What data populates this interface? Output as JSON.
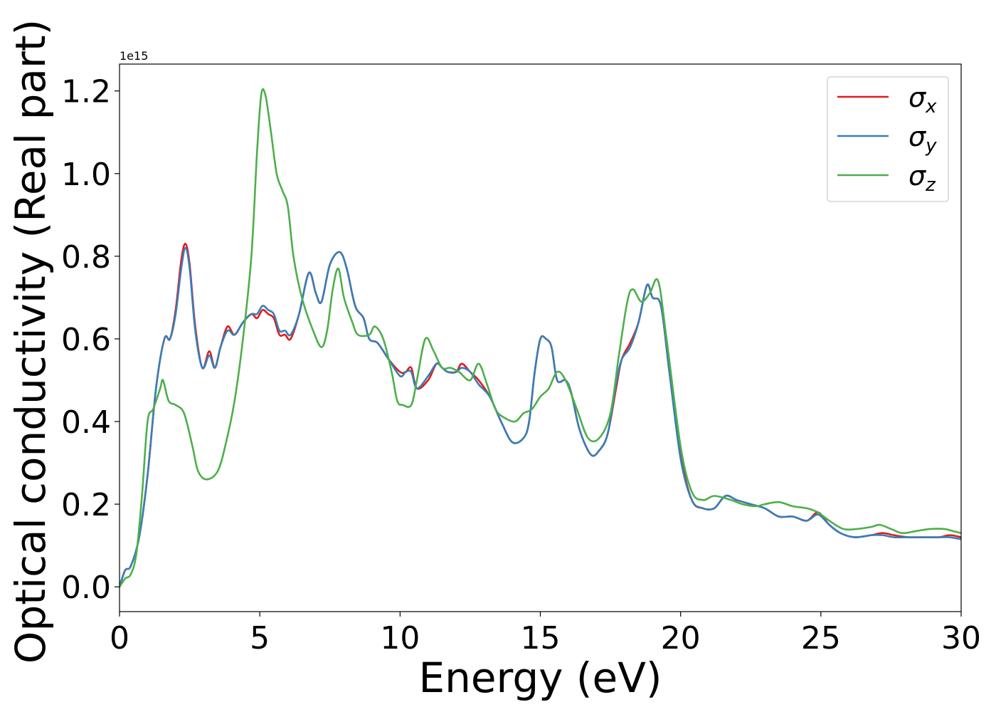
{
  "chart_data": {
    "type": "line",
    "xlabel": "Energy (eV)",
    "ylabel": "Optical conductivity (Real part)",
    "offset_label": "1e15",
    "xlim": [
      0,
      30
    ],
    "ylim": [
      -0.06,
      1.265
    ],
    "xticks": [
      0,
      5,
      10,
      15,
      20,
      25,
      30
    ],
    "xtick_labels": [
      "0",
      "5",
      "10",
      "15",
      "20",
      "25",
      "30"
    ],
    "yticks": [
      0.0,
      0.2,
      0.4,
      0.6,
      0.8,
      1.0,
      1.2
    ],
    "ytick_labels": [
      "0.0",
      "0.2",
      "0.4",
      "0.6",
      "0.8",
      "1.0",
      "1.2"
    ],
    "grid": false,
    "legend": {
      "position": "top-right",
      "entries": [
        {
          "symbol": "σ",
          "sub": "x",
          "color": "#e41a1c"
        },
        {
          "symbol": "σ",
          "sub": "y",
          "color": "#377eb8"
        },
        {
          "symbol": "σ",
          "sub": "z",
          "color": "#4daf4a"
        }
      ]
    },
    "series": [
      {
        "color": "#e41a1c",
        "points": [
          [
            0,
            0.0
          ],
          [
            0.2,
            0.04
          ],
          [
            0.4,
            0.05
          ],
          [
            0.7,
            0.12
          ],
          [
            1.0,
            0.27
          ],
          [
            1.3,
            0.48
          ],
          [
            1.6,
            0.6
          ],
          [
            1.8,
            0.6
          ],
          [
            2.0,
            0.67
          ],
          [
            2.2,
            0.79
          ],
          [
            2.35,
            0.83
          ],
          [
            2.5,
            0.78
          ],
          [
            2.7,
            0.63
          ],
          [
            2.95,
            0.53
          ],
          [
            3.2,
            0.57
          ],
          [
            3.4,
            0.53
          ],
          [
            3.6,
            0.58
          ],
          [
            3.85,
            0.63
          ],
          [
            4.1,
            0.61
          ],
          [
            4.4,
            0.64
          ],
          [
            4.7,
            0.66
          ],
          [
            4.9,
            0.65
          ],
          [
            5.1,
            0.67
          ],
          [
            5.3,
            0.66
          ],
          [
            5.5,
            0.65
          ],
          [
            5.7,
            0.61
          ],
          [
            5.9,
            0.61
          ],
          [
            6.1,
            0.6
          ],
          [
            6.4,
            0.66
          ],
          [
            6.75,
            0.76
          ],
          [
            7.0,
            0.71
          ],
          [
            7.2,
            0.69
          ],
          [
            7.5,
            0.78
          ],
          [
            7.85,
            0.81
          ],
          [
            8.1,
            0.77
          ],
          [
            8.4,
            0.68
          ],
          [
            8.7,
            0.65
          ],
          [
            8.9,
            0.6
          ],
          [
            9.2,
            0.59
          ],
          [
            9.6,
            0.55
          ],
          [
            10.0,
            0.52
          ],
          [
            10.2,
            0.52
          ],
          [
            10.4,
            0.53
          ],
          [
            10.6,
            0.48
          ],
          [
            11.0,
            0.5
          ],
          [
            11.3,
            0.54
          ],
          [
            11.5,
            0.53
          ],
          [
            11.7,
            0.52
          ],
          [
            12.0,
            0.52
          ],
          [
            12.2,
            0.54
          ],
          [
            12.5,
            0.52
          ],
          [
            12.8,
            0.5
          ],
          [
            13.2,
            0.46
          ],
          [
            13.6,
            0.4
          ],
          [
            14.0,
            0.35
          ],
          [
            14.4,
            0.36
          ],
          [
            14.6,
            0.4
          ],
          [
            14.8,
            0.52
          ],
          [
            15.0,
            0.6
          ],
          [
            15.2,
            0.6
          ],
          [
            15.4,
            0.58
          ],
          [
            15.6,
            0.5
          ],
          [
            15.9,
            0.5
          ],
          [
            16.1,
            0.47
          ],
          [
            16.4,
            0.38
          ],
          [
            16.8,
            0.32
          ],
          [
            17.1,
            0.33
          ],
          [
            17.4,
            0.37
          ],
          [
            17.7,
            0.48
          ],
          [
            17.9,
            0.55
          ],
          [
            18.2,
            0.59
          ],
          [
            18.5,
            0.64
          ],
          [
            18.8,
            0.73
          ],
          [
            19.0,
            0.7
          ],
          [
            19.3,
            0.68
          ],
          [
            19.6,
            0.52
          ],
          [
            20.0,
            0.32
          ],
          [
            20.4,
            0.21
          ],
          [
            20.8,
            0.19
          ],
          [
            21.2,
            0.19
          ],
          [
            21.6,
            0.22
          ],
          [
            22.0,
            0.21
          ],
          [
            22.5,
            0.2
          ],
          [
            23.0,
            0.19
          ],
          [
            23.5,
            0.17
          ],
          [
            24.0,
            0.17
          ],
          [
            24.5,
            0.16
          ],
          [
            24.9,
            0.18
          ],
          [
            25.3,
            0.15
          ],
          [
            25.7,
            0.13
          ],
          [
            26.2,
            0.12
          ],
          [
            26.8,
            0.125
          ],
          [
            27.2,
            0.13
          ],
          [
            27.6,
            0.125
          ],
          [
            28.1,
            0.12
          ],
          [
            28.6,
            0.12
          ],
          [
            29.2,
            0.12
          ],
          [
            29.6,
            0.125
          ],
          [
            30.0,
            0.12
          ]
        ]
      },
      {
        "color": "#377eb8",
        "points": [
          [
            0,
            0.0
          ],
          [
            0.2,
            0.04
          ],
          [
            0.4,
            0.05
          ],
          [
            0.7,
            0.12
          ],
          [
            1.0,
            0.27
          ],
          [
            1.3,
            0.48
          ],
          [
            1.6,
            0.6
          ],
          [
            1.8,
            0.6
          ],
          [
            2.0,
            0.66
          ],
          [
            2.2,
            0.77
          ],
          [
            2.35,
            0.82
          ],
          [
            2.5,
            0.77
          ],
          [
            2.7,
            0.62
          ],
          [
            2.95,
            0.53
          ],
          [
            3.2,
            0.56
          ],
          [
            3.4,
            0.53
          ],
          [
            3.6,
            0.58
          ],
          [
            3.85,
            0.62
          ],
          [
            4.1,
            0.61
          ],
          [
            4.4,
            0.64
          ],
          [
            4.7,
            0.66
          ],
          [
            4.9,
            0.66
          ],
          [
            5.1,
            0.68
          ],
          [
            5.3,
            0.67
          ],
          [
            5.5,
            0.66
          ],
          [
            5.7,
            0.62
          ],
          [
            5.9,
            0.62
          ],
          [
            6.1,
            0.61
          ],
          [
            6.4,
            0.66
          ],
          [
            6.75,
            0.76
          ],
          [
            7.0,
            0.71
          ],
          [
            7.2,
            0.69
          ],
          [
            7.5,
            0.78
          ],
          [
            7.85,
            0.81
          ],
          [
            8.1,
            0.77
          ],
          [
            8.4,
            0.68
          ],
          [
            8.7,
            0.65
          ],
          [
            8.9,
            0.6
          ],
          [
            9.2,
            0.59
          ],
          [
            9.6,
            0.55
          ],
          [
            10.0,
            0.51
          ],
          [
            10.2,
            0.52
          ],
          [
            10.4,
            0.52
          ],
          [
            10.6,
            0.48
          ],
          [
            11.0,
            0.51
          ],
          [
            11.3,
            0.54
          ],
          [
            11.5,
            0.53
          ],
          [
            11.7,
            0.52
          ],
          [
            12.0,
            0.52
          ],
          [
            12.2,
            0.53
          ],
          [
            12.5,
            0.52
          ],
          [
            12.8,
            0.49
          ],
          [
            13.2,
            0.46
          ],
          [
            13.6,
            0.4
          ],
          [
            14.0,
            0.35
          ],
          [
            14.4,
            0.36
          ],
          [
            14.6,
            0.4
          ],
          [
            14.8,
            0.52
          ],
          [
            15.0,
            0.6
          ],
          [
            15.2,
            0.6
          ],
          [
            15.4,
            0.58
          ],
          [
            15.6,
            0.5
          ],
          [
            15.9,
            0.5
          ],
          [
            16.1,
            0.47
          ],
          [
            16.4,
            0.38
          ],
          [
            16.8,
            0.32
          ],
          [
            17.1,
            0.33
          ],
          [
            17.4,
            0.37
          ],
          [
            17.7,
            0.49
          ],
          [
            17.9,
            0.55
          ],
          [
            18.2,
            0.58
          ],
          [
            18.5,
            0.64
          ],
          [
            18.8,
            0.73
          ],
          [
            19.0,
            0.7
          ],
          [
            19.3,
            0.68
          ],
          [
            19.6,
            0.52
          ],
          [
            20.0,
            0.31
          ],
          [
            20.4,
            0.21
          ],
          [
            20.8,
            0.19
          ],
          [
            21.2,
            0.19
          ],
          [
            21.6,
            0.22
          ],
          [
            22.0,
            0.21
          ],
          [
            22.5,
            0.2
          ],
          [
            23.0,
            0.19
          ],
          [
            23.5,
            0.17
          ],
          [
            24.0,
            0.17
          ],
          [
            24.5,
            0.16
          ],
          [
            24.9,
            0.175
          ],
          [
            25.3,
            0.15
          ],
          [
            25.7,
            0.13
          ],
          [
            26.2,
            0.12
          ],
          [
            26.8,
            0.125
          ],
          [
            27.2,
            0.125
          ],
          [
            27.6,
            0.12
          ],
          [
            28.1,
            0.12
          ],
          [
            28.6,
            0.12
          ],
          [
            29.2,
            0.12
          ],
          [
            29.6,
            0.12
          ],
          [
            30.0,
            0.115
          ]
        ]
      },
      {
        "color": "#4daf4a",
        "points": [
          [
            0,
            0.0
          ],
          [
            0.2,
            0.02
          ],
          [
            0.4,
            0.03
          ],
          [
            0.6,
            0.08
          ],
          [
            0.8,
            0.22
          ],
          [
            1.0,
            0.4
          ],
          [
            1.2,
            0.43
          ],
          [
            1.45,
            0.48
          ],
          [
            1.55,
            0.5
          ],
          [
            1.75,
            0.45
          ],
          [
            2.0,
            0.44
          ],
          [
            2.3,
            0.42
          ],
          [
            2.6,
            0.34
          ],
          [
            2.8,
            0.28
          ],
          [
            3.1,
            0.26
          ],
          [
            3.5,
            0.28
          ],
          [
            3.8,
            0.35
          ],
          [
            4.1,
            0.45
          ],
          [
            4.4,
            0.6
          ],
          [
            4.7,
            0.8
          ],
          [
            4.9,
            1.05
          ],
          [
            5.05,
            1.19
          ],
          [
            5.2,
            1.19
          ],
          [
            5.4,
            1.1
          ],
          [
            5.6,
            1.0
          ],
          [
            5.8,
            0.96
          ],
          [
            6.0,
            0.92
          ],
          [
            6.2,
            0.8
          ],
          [
            6.5,
            0.7
          ],
          [
            6.9,
            0.62
          ],
          [
            7.2,
            0.58
          ],
          [
            7.4,
            0.62
          ],
          [
            7.6,
            0.72
          ],
          [
            7.8,
            0.77
          ],
          [
            8.0,
            0.7
          ],
          [
            8.3,
            0.64
          ],
          [
            8.5,
            0.61
          ],
          [
            8.9,
            0.61
          ],
          [
            9.1,
            0.63
          ],
          [
            9.4,
            0.6
          ],
          [
            9.7,
            0.52
          ],
          [
            9.9,
            0.45
          ],
          [
            10.1,
            0.44
          ],
          [
            10.4,
            0.44
          ],
          [
            10.6,
            0.5
          ],
          [
            10.9,
            0.6
          ],
          [
            11.2,
            0.57
          ],
          [
            11.5,
            0.53
          ],
          [
            11.8,
            0.53
          ],
          [
            12.1,
            0.52
          ],
          [
            12.5,
            0.5
          ],
          [
            12.8,
            0.54
          ],
          [
            13.1,
            0.49
          ],
          [
            13.4,
            0.43
          ],
          [
            13.7,
            0.41
          ],
          [
            14.1,
            0.4
          ],
          [
            14.4,
            0.42
          ],
          [
            14.7,
            0.43
          ],
          [
            15.0,
            0.46
          ],
          [
            15.3,
            0.48
          ],
          [
            15.6,
            0.52
          ],
          [
            15.9,
            0.5
          ],
          [
            16.3,
            0.43
          ],
          [
            16.7,
            0.36
          ],
          [
            17.1,
            0.36
          ],
          [
            17.5,
            0.42
          ],
          [
            17.8,
            0.56
          ],
          [
            18.1,
            0.69
          ],
          [
            18.3,
            0.72
          ],
          [
            18.6,
            0.69
          ],
          [
            18.9,
            0.71
          ],
          [
            19.2,
            0.74
          ],
          [
            19.5,
            0.6
          ],
          [
            20.0,
            0.34
          ],
          [
            20.4,
            0.23
          ],
          [
            20.8,
            0.21
          ],
          [
            21.2,
            0.22
          ],
          [
            21.8,
            0.21
          ],
          [
            22.2,
            0.2
          ],
          [
            22.7,
            0.195
          ],
          [
            23.0,
            0.2
          ],
          [
            23.5,
            0.205
          ],
          [
            24.0,
            0.195
          ],
          [
            24.5,
            0.19
          ],
          [
            24.9,
            0.18
          ],
          [
            25.3,
            0.16
          ],
          [
            25.8,
            0.14
          ],
          [
            26.3,
            0.14
          ],
          [
            26.8,
            0.145
          ],
          [
            27.1,
            0.15
          ],
          [
            27.5,
            0.14
          ],
          [
            27.9,
            0.13
          ],
          [
            28.4,
            0.135
          ],
          [
            28.9,
            0.14
          ],
          [
            29.4,
            0.14
          ],
          [
            29.7,
            0.135
          ],
          [
            30.0,
            0.13
          ]
        ]
      }
    ]
  }
}
